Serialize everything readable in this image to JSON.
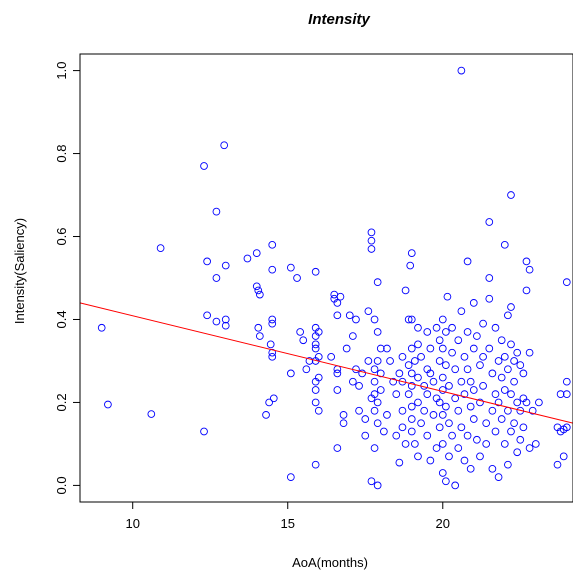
{
  "chart_data": {
    "type": "scatter",
    "title": "Intensity",
    "xlabel": "AoA(months)",
    "ylabel": "Intensity(Saliency)",
    "xlim": [
      8.3,
      24.2
    ],
    "ylim": [
      -0.04,
      1.04
    ],
    "x_ticks": [
      10,
      15,
      20
    ],
    "y_ticks": [
      0.0,
      0.2,
      0.4,
      0.6,
      0.8,
      1.0
    ],
    "y_tick_labels": [
      "0.0",
      "0.2",
      "0.4",
      "0.6",
      "0.8",
      "1.0"
    ],
    "grid": false,
    "point_color": "#0000ff",
    "regression_line": {
      "color": "#ff0000",
      "x": [
        8.3,
        24.2
      ],
      "y": [
        0.44,
        0.15
      ]
    },
    "series": [
      {
        "points": [
          [
            9.0,
            0.38
          ],
          [
            9.2,
            0.195
          ],
          [
            10.6,
            0.172
          ],
          [
            10.9,
            0.572
          ],
          [
            12.3,
            0.77
          ],
          [
            12.3,
            0.13
          ],
          [
            12.4,
            0.54
          ],
          [
            12.4,
            0.41
          ],
          [
            12.7,
            0.66
          ],
          [
            12.7,
            0.5
          ],
          [
            12.7,
            0.395
          ],
          [
            12.95,
            0.82
          ],
          [
            13.0,
            0.53
          ],
          [
            13.0,
            0.4
          ],
          [
            13.0,
            0.385
          ],
          [
            13.7,
            0.547
          ],
          [
            14.0,
            0.56
          ],
          [
            14.0,
            0.48
          ],
          [
            14.05,
            0.47
          ],
          [
            14.1,
            0.46
          ],
          [
            14.05,
            0.38
          ],
          [
            14.1,
            0.36
          ],
          [
            14.3,
            0.17
          ],
          [
            14.4,
            0.2
          ],
          [
            14.5,
            0.58
          ],
          [
            14.5,
            0.52
          ],
          [
            14.5,
            0.4
          ],
          [
            14.5,
            0.39
          ],
          [
            14.45,
            0.34
          ],
          [
            14.5,
            0.32
          ],
          [
            14.55,
            0.21
          ],
          [
            14.5,
            0.31
          ],
          [
            15.1,
            0.525
          ],
          [
            15.1,
            0.27
          ],
          [
            15.1,
            0.02
          ],
          [
            15.3,
            0.5
          ],
          [
            15.4,
            0.37
          ],
          [
            15.5,
            0.35
          ],
          [
            15.6,
            0.28
          ],
          [
            15.7,
            0.3
          ],
          [
            15.9,
            0.515
          ],
          [
            15.9,
            0.38
          ],
          [
            15.9,
            0.36
          ],
          [
            15.9,
            0.34
          ],
          [
            15.9,
            0.33
          ],
          [
            15.9,
            0.3
          ],
          [
            15.9,
            0.25
          ],
          [
            15.9,
            0.23
          ],
          [
            15.9,
            0.2
          ],
          [
            15.9,
            0.05
          ],
          [
            16.0,
            0.37
          ],
          [
            16.0,
            0.31
          ],
          [
            16.0,
            0.26
          ],
          [
            16.0,
            0.18
          ],
          [
            16.4,
            0.31
          ],
          [
            16.5,
            0.46
          ],
          [
            16.5,
            0.45
          ],
          [
            16.6,
            0.44
          ],
          [
            16.6,
            0.41
          ],
          [
            16.6,
            0.28
          ],
          [
            16.6,
            0.27
          ],
          [
            16.6,
            0.23
          ],
          [
            16.6,
            0.09
          ],
          [
            16.7,
            0.455
          ],
          [
            16.8,
            0.17
          ],
          [
            16.8,
            0.15
          ],
          [
            16.9,
            0.33
          ],
          [
            17.0,
            0.41
          ],
          [
            17.1,
            0.36
          ],
          [
            17.1,
            0.25
          ],
          [
            17.2,
            0.4
          ],
          [
            17.2,
            0.28
          ],
          [
            17.3,
            0.24
          ],
          [
            17.3,
            0.18
          ],
          [
            17.4,
            0.27
          ],
          [
            17.5,
            0.16
          ],
          [
            17.5,
            0.12
          ],
          [
            17.6,
            0.42
          ],
          [
            17.6,
            0.3
          ],
          [
            17.7,
            0.61
          ],
          [
            17.7,
            0.59
          ],
          [
            17.7,
            0.57
          ],
          [
            17.7,
            0.21
          ],
          [
            17.7,
            0.01
          ],
          [
            17.8,
            0.4
          ],
          [
            17.8,
            0.28
          ],
          [
            17.8,
            0.25
          ],
          [
            17.8,
            0.22
          ],
          [
            17.8,
            0.18
          ],
          [
            17.8,
            0.09
          ],
          [
            17.9,
            0.49
          ],
          [
            17.9,
            0.37
          ],
          [
            17.9,
            0.3
          ],
          [
            17.9,
            0.2
          ],
          [
            17.9,
            0.15
          ],
          [
            17.9,
            0.0
          ],
          [
            18.0,
            0.33
          ],
          [
            18.0,
            0.27
          ],
          [
            18.0,
            0.23
          ],
          [
            18.1,
            0.13
          ],
          [
            18.2,
            0.33
          ],
          [
            18.2,
            0.17
          ],
          [
            18.3,
            0.3
          ],
          [
            18.4,
            0.25
          ],
          [
            18.5,
            0.22
          ],
          [
            18.5,
            0.12
          ],
          [
            18.6,
            0.27
          ],
          [
            18.6,
            0.055
          ],
          [
            18.7,
            0.31
          ],
          [
            18.7,
            0.25
          ],
          [
            18.7,
            0.18
          ],
          [
            18.7,
            0.14
          ],
          [
            18.8,
            0.47
          ],
          [
            18.8,
            0.1
          ],
          [
            18.9,
            0.4
          ],
          [
            18.9,
            0.29
          ],
          [
            18.9,
            0.22
          ],
          [
            18.95,
            0.53
          ],
          [
            19.0,
            0.56
          ],
          [
            19.0,
            0.4
          ],
          [
            19.0,
            0.33
          ],
          [
            19.0,
            0.27
          ],
          [
            19.0,
            0.24
          ],
          [
            19.0,
            0.19
          ],
          [
            19.0,
            0.16
          ],
          [
            19.0,
            0.13
          ],
          [
            19.1,
            0.3
          ],
          [
            19.1,
            0.1
          ],
          [
            19.2,
            0.38
          ],
          [
            19.2,
            0.34
          ],
          [
            19.2,
            0.26
          ],
          [
            19.2,
            0.2
          ],
          [
            19.2,
            0.07
          ],
          [
            19.3,
            0.31
          ],
          [
            19.3,
            0.15
          ],
          [
            19.4,
            0.24
          ],
          [
            19.4,
            0.18
          ],
          [
            19.5,
            0.37
          ],
          [
            19.5,
            0.28
          ],
          [
            19.5,
            0.22
          ],
          [
            19.5,
            0.12
          ],
          [
            19.6,
            0.33
          ],
          [
            19.6,
            0.27
          ],
          [
            19.6,
            0.06
          ],
          [
            19.7,
            0.25
          ],
          [
            19.7,
            0.17
          ],
          [
            19.8,
            0.38
          ],
          [
            19.8,
            0.21
          ],
          [
            19.8,
            0.09
          ],
          [
            19.9,
            0.35
          ],
          [
            19.9,
            0.3
          ],
          [
            19.9,
            0.2
          ],
          [
            19.9,
            0.14
          ],
          [
            20.0,
            0.4
          ],
          [
            20.0,
            0.33
          ],
          [
            20.0,
            0.26
          ],
          [
            20.0,
            0.23
          ],
          [
            20.0,
            0.17
          ],
          [
            20.0,
            0.1
          ],
          [
            20.0,
            0.03
          ],
          [
            20.1,
            0.37
          ],
          [
            20.1,
            0.29
          ],
          [
            20.1,
            0.19
          ],
          [
            20.1,
            0.01
          ],
          [
            20.15,
            0.455
          ],
          [
            20.2,
            0.24
          ],
          [
            20.2,
            0.15
          ],
          [
            20.2,
            0.07
          ],
          [
            20.3,
            0.38
          ],
          [
            20.3,
            0.32
          ],
          [
            20.3,
            0.12
          ],
          [
            20.4,
            0.28
          ],
          [
            20.4,
            0.21
          ],
          [
            20.4,
            0.0
          ],
          [
            20.5,
            0.35
          ],
          [
            20.5,
            0.18
          ],
          [
            20.5,
            0.09
          ],
          [
            20.6,
            1.0
          ],
          [
            20.6,
            0.42
          ],
          [
            20.6,
            0.25
          ],
          [
            20.6,
            0.14
          ],
          [
            20.7,
            0.31
          ],
          [
            20.7,
            0.22
          ],
          [
            20.7,
            0.06
          ],
          [
            20.8,
            0.54
          ],
          [
            20.8,
            0.37
          ],
          [
            20.8,
            0.28
          ],
          [
            20.8,
            0.12
          ],
          [
            20.9,
            0.25
          ],
          [
            20.9,
            0.19
          ],
          [
            20.9,
            0.04
          ],
          [
            21.0,
            0.44
          ],
          [
            21.0,
            0.33
          ],
          [
            21.0,
            0.23
          ],
          [
            21.0,
            0.16
          ],
          [
            21.1,
            0.36
          ],
          [
            21.1,
            0.11
          ],
          [
            21.2,
            0.29
          ],
          [
            21.2,
            0.2
          ],
          [
            21.2,
            0.07
          ],
          [
            21.3,
            0.39
          ],
          [
            21.3,
            0.31
          ],
          [
            21.3,
            0.24
          ],
          [
            21.4,
            0.15
          ],
          [
            21.4,
            0.1
          ],
          [
            21.5,
            0.635
          ],
          [
            21.5,
            0.5
          ],
          [
            21.5,
            0.45
          ],
          [
            21.5,
            0.33
          ],
          [
            21.6,
            0.27
          ],
          [
            21.6,
            0.18
          ],
          [
            21.6,
            0.04
          ],
          [
            21.7,
            0.38
          ],
          [
            21.7,
            0.22
          ],
          [
            21.7,
            0.13
          ],
          [
            21.8,
            0.3
          ],
          [
            21.8,
            0.2
          ],
          [
            21.8,
            0.02
          ],
          [
            21.9,
            0.35
          ],
          [
            21.9,
            0.26
          ],
          [
            21.9,
            0.16
          ],
          [
            22.0,
            0.58
          ],
          [
            22.0,
            0.31
          ],
          [
            22.0,
            0.23
          ],
          [
            22.0,
            0.1
          ],
          [
            22.1,
            0.41
          ],
          [
            22.1,
            0.28
          ],
          [
            22.1,
            0.18
          ],
          [
            22.1,
            0.05
          ],
          [
            22.2,
            0.7
          ],
          [
            22.2,
            0.43
          ],
          [
            22.2,
            0.34
          ],
          [
            22.2,
            0.22
          ],
          [
            22.2,
            0.13
          ],
          [
            22.3,
            0.3
          ],
          [
            22.3,
            0.25
          ],
          [
            22.3,
            0.15
          ],
          [
            22.4,
            0.32
          ],
          [
            22.4,
            0.2
          ],
          [
            22.4,
            0.08
          ],
          [
            22.5,
            0.29
          ],
          [
            22.5,
            0.18
          ],
          [
            22.5,
            0.11
          ],
          [
            22.6,
            0.27
          ],
          [
            22.6,
            0.21
          ],
          [
            22.6,
            0.14
          ],
          [
            22.7,
            0.54
          ],
          [
            22.7,
            0.47
          ],
          [
            22.7,
            0.2
          ],
          [
            22.8,
            0.52
          ],
          [
            22.8,
            0.32
          ],
          [
            22.8,
            0.09
          ],
          [
            22.9,
            0.18
          ],
          [
            23.0,
            0.1
          ],
          [
            23.1,
            0.2
          ],
          [
            23.7,
            0.14
          ],
          [
            23.7,
            0.05
          ],
          [
            23.8,
            0.22
          ],
          [
            23.8,
            0.13
          ],
          [
            23.9,
            0.135
          ],
          [
            23.9,
            0.07
          ],
          [
            24.0,
            0.49
          ],
          [
            24.0,
            0.25
          ],
          [
            24.0,
            0.22
          ],
          [
            24.0,
            0.14
          ]
        ]
      }
    ]
  }
}
